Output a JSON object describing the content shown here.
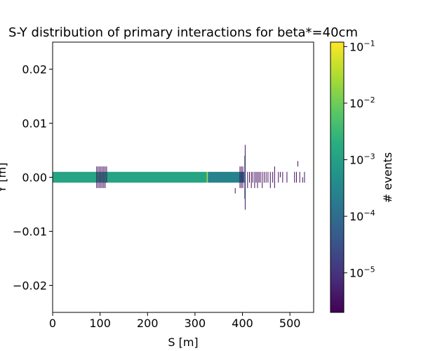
{
  "chart_data": {
    "type": "heatmap",
    "title": "S-Y distribution of primary interactions for beta*=40cm",
    "xlabel": "S [m]",
    "ylabel": "Y [m]",
    "xlim": [
      0,
      550
    ],
    "ylim": [
      -0.025,
      0.025
    ],
    "x_ticks": [
      0,
      100,
      200,
      300,
      400,
      500
    ],
    "x_tick_labels": [
      "0",
      "100",
      "200",
      "300",
      "400",
      "500"
    ],
    "y_ticks": [
      0.02,
      0.01,
      0.0,
      -0.01,
      -0.02
    ],
    "y_tick_labels": [
      "0.02",
      "0.01",
      "0.00",
      "−0.01",
      "−0.02"
    ],
    "colorbar": {
      "label": "# events",
      "scale": "log",
      "range": [
        2e-06,
        0.12
      ],
      "tick_values": [
        0.1,
        0.01,
        0.001,
        0.0001,
        1e-05
      ],
      "tick_bases": [
        "10",
        "10",
        "10",
        "10",
        "10"
      ],
      "tick_exponents": [
        "−1",
        "−2",
        "−3",
        "−4",
        "−5"
      ],
      "colormap": "viridis"
    },
    "cells": [
      {
        "s0": 0,
        "s1": 325,
        "y0": -0.001,
        "y1": 0.001,
        "value": 0.0012
      },
      {
        "s0": 325,
        "s1": 327,
        "y0": -0.001,
        "y1": 0.001,
        "value": 0.03
      },
      {
        "s0": 327,
        "s1": 398,
        "y0": -0.001,
        "y1": 0.001,
        "value": 0.00025
      },
      {
        "s0": 398,
        "s1": 404,
        "y0": -0.001,
        "y1": 0.001,
        "value": 0.00015
      },
      {
        "s0": 404,
        "s1": 406,
        "y0": -0.004,
        "y1": 0.004,
        "value": 0.0003
      },
      {
        "s0": 405,
        "s1": 406,
        "y0": -0.006,
        "y1": 0.006,
        "value": 3e-06
      },
      {
        "s0": 92,
        "s1": 93,
        "y0": -0.002,
        "y1": 0.002,
        "value": 3e-06
      },
      {
        "s0": 95,
        "s1": 96,
        "y0": -0.002,
        "y1": 0.002,
        "value": 3e-06
      },
      {
        "s0": 98,
        "s1": 99,
        "y0": -0.002,
        "y1": 0.002,
        "value": 3e-06
      },
      {
        "s0": 101,
        "s1": 102,
        "y0": -0.002,
        "y1": 0.002,
        "value": 3e-06
      },
      {
        "s0": 104,
        "s1": 105,
        "y0": -0.002,
        "y1": 0.002,
        "value": 3e-06
      },
      {
        "s0": 107,
        "s1": 108,
        "y0": -0.002,
        "y1": 0.002,
        "value": 3e-06
      },
      {
        "s0": 110,
        "s1": 111,
        "y0": -0.002,
        "y1": 0.002,
        "value": 3e-06
      },
      {
        "s0": 113,
        "s1": 114,
        "y0": -0.001,
        "y1": 0.002,
        "value": 3e-06
      },
      {
        "s0": 384,
        "s1": 385,
        "y0": -0.003,
        "y1": -0.002,
        "value": 3e-06
      },
      {
        "s0": 394,
        "s1": 395,
        "y0": -0.002,
        "y1": 0.002,
        "value": 3e-06
      },
      {
        "s0": 397,
        "s1": 398,
        "y0": -0.002,
        "y1": 0.002,
        "value": 3e-06
      },
      {
        "s0": 400,
        "s1": 401,
        "y0": -0.002,
        "y1": 0.002,
        "value": 3e-06
      },
      {
        "s0": 410,
        "s1": 411,
        "y0": -0.002,
        "y1": 0.001,
        "value": 3e-06
      },
      {
        "s0": 414,
        "s1": 415,
        "y0": -0.001,
        "y1": 0.001,
        "value": 3e-06
      },
      {
        "s0": 418,
        "s1": 419,
        "y0": -0.002,
        "y1": 0.001,
        "value": 3e-06
      },
      {
        "s0": 421,
        "s1": 422,
        "y0": -0.001,
        "y1": 0.001,
        "value": 3e-06
      },
      {
        "s0": 425,
        "s1": 426,
        "y0": -0.002,
        "y1": 0.001,
        "value": 3e-06
      },
      {
        "s0": 428,
        "s1": 429,
        "y0": -0.001,
        "y1": 0.001,
        "value": 3e-06
      },
      {
        "s0": 431,
        "s1": 432,
        "y0": -0.002,
        "y1": 0.001,
        "value": 3e-06
      },
      {
        "s0": 434,
        "s1": 435,
        "y0": -0.001,
        "y1": 0.001,
        "value": 3e-06
      },
      {
        "s0": 437,
        "s1": 438,
        "y0": -0.001,
        "y1": 0.001,
        "value": 3e-06
      },
      {
        "s0": 441,
        "s1": 442,
        "y0": -0.002,
        "y1": 0.001,
        "value": 3e-06
      },
      {
        "s0": 445,
        "s1": 446,
        "y0": -0.001,
        "y1": 0.001,
        "value": 3e-06
      },
      {
        "s0": 449,
        "s1": 450,
        "y0": -0.001,
        "y1": 0.001,
        "value": 3e-06
      },
      {
        "s0": 453,
        "s1": 454,
        "y0": -0.001,
        "y1": 0.001,
        "value": 3e-06
      },
      {
        "s0": 458,
        "s1": 459,
        "y0": -0.002,
        "y1": 0.001,
        "value": 3e-06
      },
      {
        "s0": 463,
        "s1": 464,
        "y0": -0.001,
        "y1": 0.001,
        "value": 3e-06
      },
      {
        "s0": 467,
        "s1": 468,
        "y0": -0.002,
        "y1": 0.002,
        "value": 3e-06
      },
      {
        "s0": 475,
        "s1": 476,
        "y0": -0.001,
        "y1": 0.001,
        "value": 3e-06
      },
      {
        "s0": 479,
        "s1": 480,
        "y0": 0.0,
        "y1": 0.001,
        "value": 3e-06
      },
      {
        "s0": 484,
        "s1": 485,
        "y0": -0.001,
        "y1": 0.001,
        "value": 3e-06
      },
      {
        "s0": 493,
        "s1": 494,
        "y0": -0.001,
        "y1": 0.001,
        "value": 3e-06
      },
      {
        "s0": 509,
        "s1": 510,
        "y0": -0.001,
        "y1": 0.001,
        "value": 3e-06
      },
      {
        "s0": 513,
        "s1": 514,
        "y0": -0.001,
        "y1": 0.001,
        "value": 3e-06
      },
      {
        "s0": 516,
        "s1": 517,
        "y0": 0.002,
        "y1": 0.003,
        "value": 3e-06
      },
      {
        "s0": 520,
        "s1": 521,
        "y0": -0.001,
        "y1": 0.001,
        "value": 3e-06
      },
      {
        "s0": 526,
        "s1": 527,
        "y0": -0.001,
        "y1": 0.0,
        "value": 3e-06
      },
      {
        "s0": 530,
        "s1": 531,
        "y0": -0.001,
        "y1": 0.001,
        "value": 3e-06
      }
    ]
  }
}
